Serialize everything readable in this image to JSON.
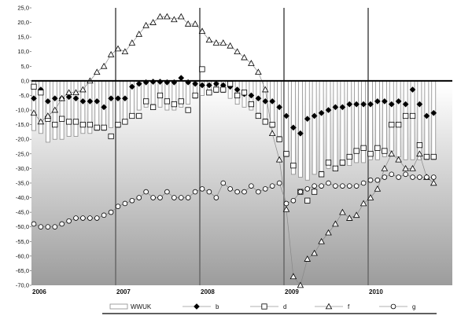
{
  "chart_data": {
    "type": "bar+line",
    "title": "",
    "xlabel": "",
    "ylabel": "",
    "ylim": [
      -70,
      25
    ],
    "y_tick_step": 5,
    "x_year_labels": [
      "2006",
      "2007",
      "2008",
      "2009",
      "2010"
    ],
    "x_start": 2006.0,
    "x_end": 2011.0,
    "grid": "vertical lines at year boundaries",
    "background": "gradient from white (top) to grey (bottom)",
    "legend_position": "bottom",
    "series": [
      {
        "name": "WWUK",
        "kind": "bar",
        "style": "white bars with grey outline",
        "x": [
          2006.0,
          2006.083,
          2006.167,
          2006.25,
          2006.333,
          2006.417,
          2006.5,
          2006.583,
          2006.667,
          2006.75,
          2006.833,
          2006.917,
          2007.0,
          2007.083,
          2007.167,
          2007.25,
          2007.333,
          2007.417,
          2007.5,
          2007.583,
          2007.667,
          2007.75,
          2007.833,
          2007.917,
          2008.0,
          2008.083,
          2008.167,
          2008.25,
          2008.333,
          2008.417,
          2008.5,
          2008.583,
          2008.667,
          2008.75,
          2008.833,
          2008.917,
          2009.0,
          2009.083,
          2009.167,
          2009.25,
          2009.333,
          2009.417,
          2009.5,
          2009.583,
          2009.667,
          2009.75,
          2009.833,
          2009.917,
          2010.0,
          2010.083,
          2010.167,
          2010.25,
          2010.333,
          2010.417,
          2010.5,
          2010.583,
          2010.667,
          2010.75
        ],
        "values": [
          -17,
          -18,
          -21,
          -20,
          -20,
          -19,
          -19,
          -18,
          -18,
          -17,
          -17,
          -16,
          -16,
          -14,
          -12,
          -10,
          -9,
          -8,
          -9,
          -10,
          -10,
          -9,
          -8,
          -6,
          -5,
          -4,
          -4,
          -4,
          -6,
          -8,
          -9,
          -10,
          -11,
          -13,
          -16,
          -19,
          -26,
          -32,
          -33,
          -34,
          -32,
          -31,
          -30,
          -30,
          -29,
          -29,
          -28,
          -28,
          -27,
          -27,
          -26,
          -24,
          -26,
          -27,
          -27,
          -27,
          -27,
          -27
        ]
      },
      {
        "name": "b",
        "kind": "markers",
        "marker": "filled diamond",
        "x": [
          2006.0,
          2006.083,
          2006.167,
          2006.25,
          2006.333,
          2006.417,
          2006.5,
          2006.583,
          2006.667,
          2006.75,
          2006.833,
          2006.917,
          2007.0,
          2007.083,
          2007.167,
          2007.25,
          2007.333,
          2007.417,
          2007.5,
          2007.583,
          2007.667,
          2007.75,
          2007.833,
          2007.917,
          2008.0,
          2008.083,
          2008.167,
          2008.25,
          2008.333,
          2008.417,
          2008.5,
          2008.583,
          2008.667,
          2008.75,
          2008.833,
          2008.917,
          2009.0,
          2009.083,
          2009.167,
          2009.25,
          2009.333,
          2009.417,
          2009.5,
          2009.583,
          2009.667,
          2009.75,
          2009.833,
          2009.917,
          2010.0,
          2010.083,
          2010.167,
          2010.25,
          2010.333,
          2010.417,
          2010.5,
          2010.583,
          2010.667,
          2010.75
        ],
        "values": [
          -6,
          -3,
          -7,
          -6,
          -6,
          -5.5,
          -6,
          -7,
          -7,
          -7,
          -9,
          -6,
          -6,
          -6,
          -2,
          -1,
          -0.5,
          -0.3,
          -0.3,
          -0.5,
          -0.5,
          1,
          -0.5,
          -1,
          -1.5,
          -1.5,
          -1,
          -1.5,
          -2,
          -3,
          -4.5,
          -5,
          -6,
          -7,
          -7,
          -9,
          -12,
          -16,
          -18,
          -13,
          -12,
          -11,
          -10,
          -9,
          -9,
          -8,
          -8,
          -8,
          -8,
          -7,
          -7,
          -8,
          -7,
          -8,
          -3,
          -8,
          -12,
          -11
        ]
      },
      {
        "name": "d",
        "kind": "markers",
        "marker": "open square",
        "x": [
          2006.0,
          2006.083,
          2006.167,
          2006.25,
          2006.333,
          2006.417,
          2006.5,
          2006.583,
          2006.667,
          2006.75,
          2006.833,
          2006.917,
          2007.0,
          2007.083,
          2007.167,
          2007.25,
          2007.333,
          2007.417,
          2007.5,
          2007.583,
          2007.667,
          2007.75,
          2007.833,
          2007.917,
          2008.0,
          2008.083,
          2008.167,
          2008.25,
          2008.333,
          2008.417,
          2008.5,
          2008.583,
          2008.667,
          2008.75,
          2008.833,
          2008.917,
          2009.0,
          2009.083,
          2009.167,
          2009.25,
          2009.333,
          2009.417,
          2009.5,
          2009.583,
          2009.667,
          2009.75,
          2009.833,
          2009.917,
          2010.0,
          2010.083,
          2010.167,
          2010.25,
          2010.333,
          2010.417,
          2010.5,
          2010.583,
          2010.667,
          2010.75
        ],
        "values": [
          -2,
          -4,
          -13,
          -15,
          -13,
          -14,
          -14,
          -15,
          -15,
          -16,
          -16,
          -19,
          -15,
          -14,
          -12,
          -12,
          -7,
          -9,
          -5,
          -7,
          -8,
          -7,
          -10,
          -5,
          4,
          -4,
          -3,
          -3,
          -1,
          -5,
          -4,
          -8,
          -12,
          -14,
          -15,
          -20,
          -25,
          -29,
          -38,
          -41,
          -38,
          -32,
          -28,
          -30,
          -28,
          -26,
          -24,
          -23,
          -25,
          -23,
          -24,
          -15,
          -15,
          -12,
          -12,
          -22,
          -26,
          -26
        ]
      },
      {
        "name": "f",
        "kind": "line+markers",
        "marker": "open triangle",
        "x": [
          2006.0,
          2006.083,
          2006.167,
          2006.25,
          2006.333,
          2006.417,
          2006.5,
          2006.583,
          2006.667,
          2006.75,
          2006.833,
          2006.917,
          2007.0,
          2007.083,
          2007.167,
          2007.25,
          2007.333,
          2007.417,
          2007.5,
          2007.583,
          2007.667,
          2007.75,
          2007.833,
          2007.917,
          2008.0,
          2008.083,
          2008.167,
          2008.25,
          2008.333,
          2008.417,
          2008.5,
          2008.583,
          2008.667,
          2008.75,
          2008.833,
          2008.917,
          2009.0,
          2009.083,
          2009.167,
          2009.25,
          2009.333,
          2009.417,
          2009.5,
          2009.583,
          2009.667,
          2009.75,
          2009.833,
          2009.917,
          2010.0,
          2010.083,
          2010.167,
          2010.25,
          2010.333,
          2010.417,
          2010.5,
          2010.583,
          2010.667,
          2010.75
        ],
        "values": [
          -11,
          -14,
          -12,
          -10,
          -6,
          -4,
          -4,
          -3,
          0,
          3,
          5,
          9,
          11,
          10,
          13,
          16,
          19,
          20,
          22,
          22,
          21,
          22,
          19.5,
          19.5,
          17,
          14,
          13,
          13,
          12,
          10,
          8,
          6,
          3,
          -3,
          -18,
          -27,
          -44,
          -67,
          -70,
          -61,
          -59,
          -55,
          -52,
          -49,
          -45,
          -47,
          -46,
          -42,
          -40,
          -37,
          -30,
          -25,
          -27,
          -30,
          -30,
          -25,
          -33,
          -35
        ]
      },
      {
        "name": "g",
        "kind": "line+markers",
        "marker": "open circle",
        "x": [
          2006.0,
          2006.083,
          2006.167,
          2006.25,
          2006.333,
          2006.417,
          2006.5,
          2006.583,
          2006.667,
          2006.75,
          2006.833,
          2006.917,
          2007.0,
          2007.083,
          2007.167,
          2007.25,
          2007.333,
          2007.417,
          2007.5,
          2007.583,
          2007.667,
          2007.75,
          2007.833,
          2007.917,
          2008.0,
          2008.083,
          2008.167,
          2008.25,
          2008.333,
          2008.417,
          2008.5,
          2008.583,
          2008.667,
          2008.75,
          2008.833,
          2008.917,
          2009.0,
          2009.083,
          2009.167,
          2009.25,
          2009.333,
          2009.417,
          2009.5,
          2009.583,
          2009.667,
          2009.75,
          2009.833,
          2009.917,
          2010.0,
          2010.083,
          2010.167,
          2010.25,
          2010.333,
          2010.417,
          2010.5,
          2010.583,
          2010.667,
          2010.75
        ],
        "values": [
          -49,
          -50,
          -50,
          -50,
          -49,
          -48,
          -47,
          -47,
          -47,
          -47,
          -46,
          -45,
          -43,
          -42,
          -41,
          -40,
          -38,
          -40,
          -40,
          -38,
          -40,
          -40,
          -40,
          -38,
          -37,
          -38,
          -40,
          -35,
          -37,
          -38,
          -38,
          -36,
          -38,
          -37,
          -36,
          -35,
          -42,
          -41,
          -38,
          -37,
          -36,
          -36,
          -35,
          -36,
          -36,
          -36,
          -36,
          -35,
          -34,
          -34,
          -33,
          -32,
          -33,
          -32,
          -33,
          -33,
          -33,
          -33
        ]
      }
    ]
  }
}
